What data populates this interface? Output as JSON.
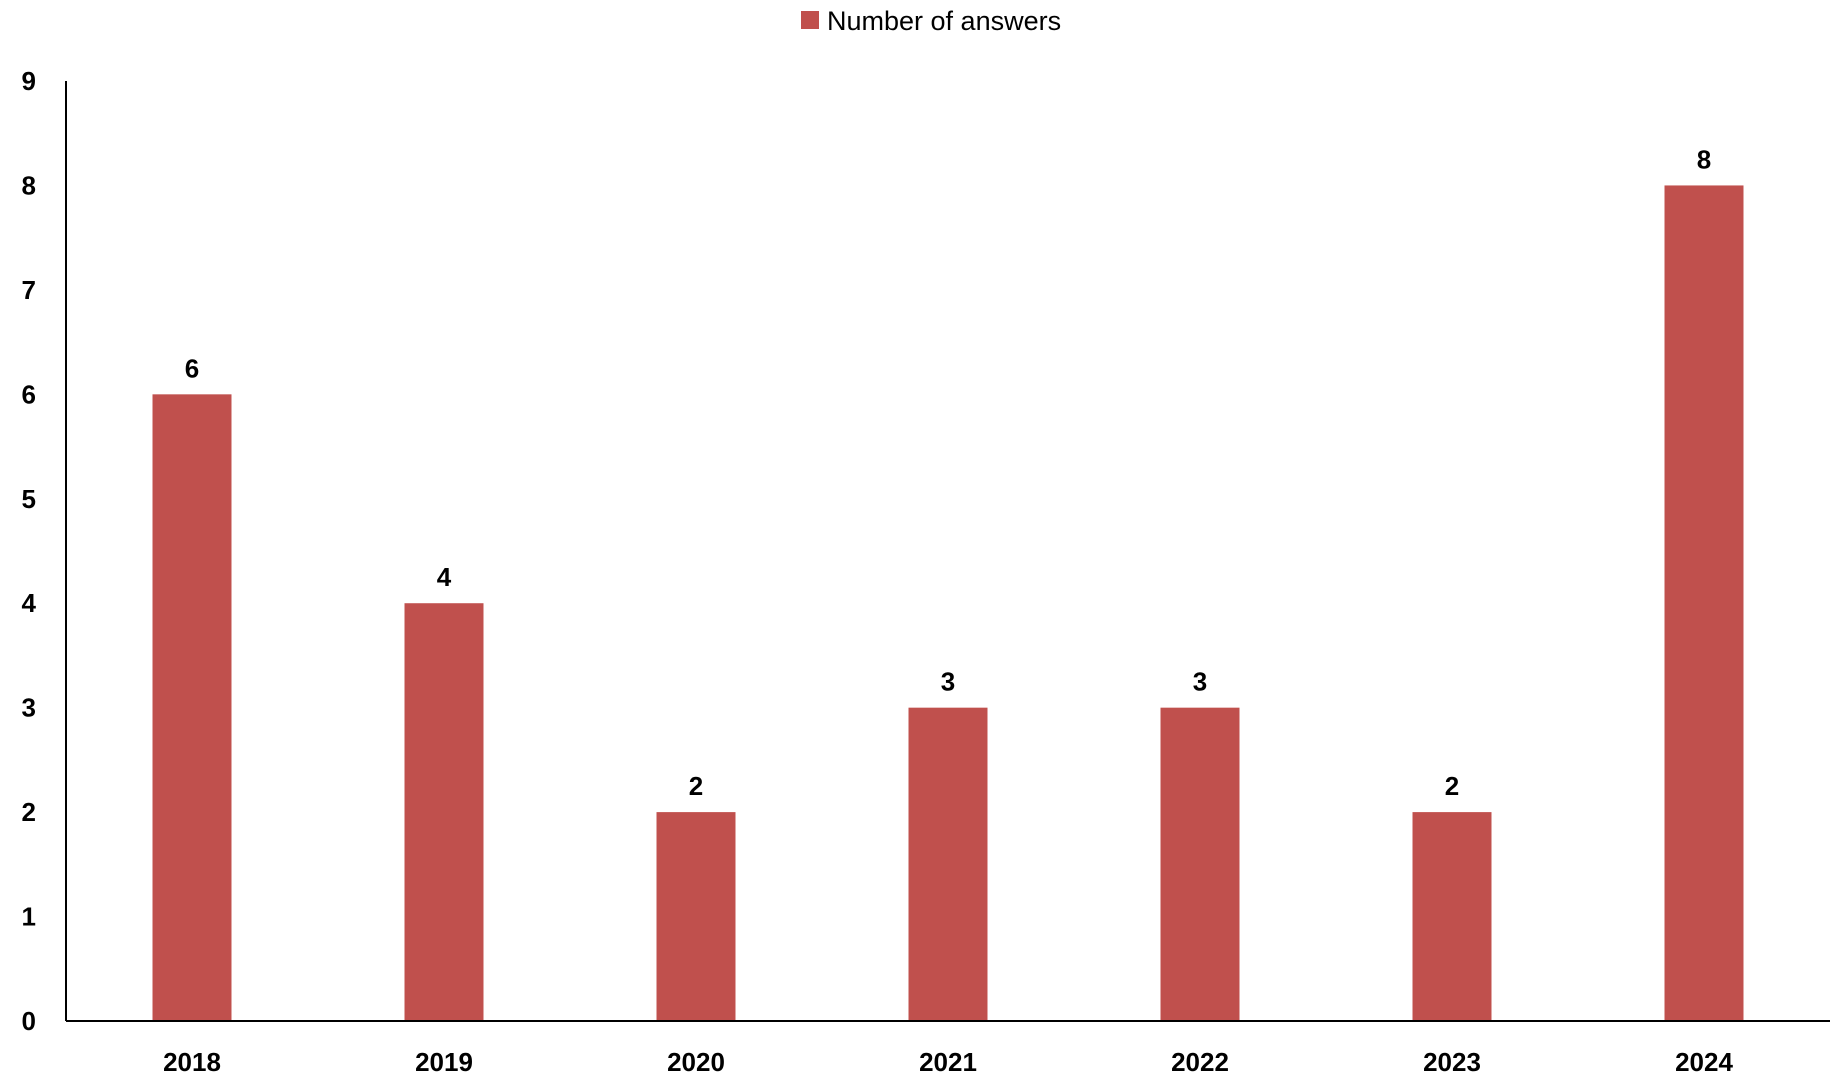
{
  "chart_data": {
    "type": "bar",
    "categories": [
      "2018",
      "2019",
      "2020",
      "2021",
      "2022",
      "2023",
      "2024"
    ],
    "series": [
      {
        "name": "Number of answers",
        "values": [
          6,
          4,
          2,
          3,
          3,
          2,
          8
        ],
        "color": "#C0504D"
      }
    ],
    "title": "",
    "xlabel": "",
    "ylabel": "",
    "ylim": [
      0,
      9
    ],
    "yticks": [
      0,
      1,
      2,
      3,
      4,
      5,
      6,
      7,
      8,
      9
    ],
    "grid": false,
    "legend_position": "top-center",
    "data_labels": true
  }
}
